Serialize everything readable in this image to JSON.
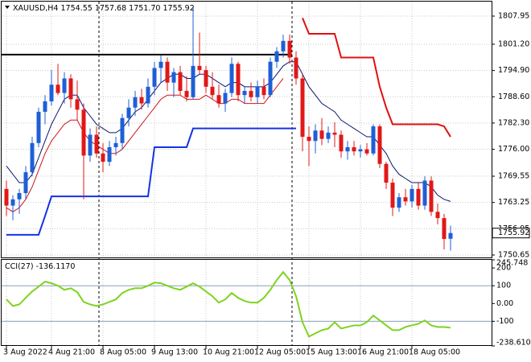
{
  "chart_data": [
    {
      "type": "candlestick",
      "symbol": "XAUUSD,H4",
      "header_values": [
        "1754.55",
        "1757.68",
        "1751.70",
        "1755.92"
      ],
      "categories": [
        "3 Aug 2022",
        null,
        null,
        null,
        null,
        null,
        null,
        "4 Aug 21:00",
        null,
        null,
        null,
        null,
        null,
        null,
        null,
        "8 Aug 05:00",
        null,
        null,
        null,
        null,
        null,
        null,
        null,
        "9 Aug 13:00",
        null,
        null,
        null,
        null,
        null,
        null,
        null,
        "10 Aug 21:00",
        null,
        null,
        null,
        null,
        null,
        null,
        null,
        "12 Aug 05:00",
        null,
        null,
        null,
        null,
        null,
        null,
        null,
        "15 Aug 13:00",
        null,
        null,
        null,
        null,
        null,
        null,
        null,
        "16 Aug 21:00",
        null,
        null,
        null,
        null,
        null,
        null,
        null,
        "18 Aug 05:00",
        null,
        null,
        null,
        null,
        null,
        null
      ],
      "open": [
        1766.5,
        1762.5,
        1764.0,
        1765.5,
        1770.5,
        1777.5,
        1785.0,
        1787.5,
        1791.5,
        1789.5,
        1793.0,
        1788.0,
        1785.5,
        1774.5,
        1779.5,
        1775.0,
        1773.0,
        1776.5,
        1777.5,
        1783.5,
        1786.0,
        1788.5,
        1787.0,
        1791.0,
        1795.5,
        1797.0,
        1792.0,
        1794.5,
        1790.0,
        1788.5,
        1796.0,
        1795.0,
        1791.0,
        1789.0,
        1787.0,
        1789.5,
        1796.5,
        1789.0,
        1790.0,
        1788.5,
        1791.0,
        1789.0,
        1797.0,
        1799.5,
        1802.0,
        1798.0,
        1793.0,
        1779.0,
        1778.0,
        1780.5,
        1778.5,
        1780.0,
        1779.5,
        1775.5,
        1776.5,
        1775.5,
        1776.0,
        1775.0,
        1781.5,
        1772.5,
        1768.0,
        1762.0,
        1764.5,
        1763.5,
        1766.5,
        1762.5,
        1768.5,
        1761.0,
        1759.5,
        1754.55
      ],
      "high": [
        1768.5,
        1765.0,
        1766.5,
        1772.0,
        1779.0,
        1786.0,
        1789.0,
        1795.0,
        1796.5,
        1794.5,
        1794.0,
        1792.5,
        1787.0,
        1781.0,
        1781.5,
        1777.5,
        1778.0,
        1779.0,
        1784.5,
        1788.0,
        1790.0,
        1790.5,
        1793.0,
        1797.0,
        1798.5,
        1798.0,
        1795.5,
        1796.0,
        1793.5,
        1810.0,
        1804.0,
        1796.0,
        1794.5,
        1791.5,
        1790.5,
        1798.0,
        1797.0,
        1791.0,
        1792.0,
        1792.5,
        1793.0,
        1798.0,
        1800.5,
        1803.5,
        1803.5,
        1799.5,
        1794.0,
        1781.5,
        1782.0,
        1783.5,
        1781.5,
        1782.5,
        1780.5,
        1778.0,
        1778.0,
        1777.0,
        1777.5,
        1782.0,
        1782.0,
        1773.0,
        1769.0,
        1765.5,
        1766.5,
        1767.5,
        1768.0,
        1769.5,
        1769.5,
        1763.0,
        1760.5,
        1757.68
      ],
      "low": [
        1760.0,
        1759.0,
        1760.5,
        1764.0,
        1769.5,
        1776.5,
        1782.0,
        1786.5,
        1789.0,
        1787.0,
        1786.0,
        1783.0,
        1764.0,
        1773.0,
        1774.0,
        1770.5,
        1772.0,
        1774.5,
        1776.0,
        1781.5,
        1784.0,
        1785.5,
        1786.0,
        1789.0,
        1792.0,
        1790.0,
        1788.5,
        1789.0,
        1787.5,
        1788.0,
        1794.0,
        1789.5,
        1788.0,
        1786.0,
        1785.0,
        1788.5,
        1787.5,
        1787.0,
        1787.5,
        1787.0,
        1788.0,
        1788.5,
        1795.5,
        1798.0,
        1796.5,
        1791.5,
        1775.5,
        1772.0,
        1775.0,
        1777.0,
        1777.5,
        1776.5,
        1774.0,
        1773.5,
        1774.5,
        1774.0,
        1774.5,
        1774.5,
        1771.5,
        1766.5,
        1760.0,
        1761.0,
        1762.5,
        1762.0,
        1761.5,
        1761.5,
        1760.0,
        1758.0,
        1752.0,
        1751.7
      ],
      "close": [
        1762.5,
        1764.0,
        1765.5,
        1770.5,
        1777.5,
        1785.0,
        1787.5,
        1791.5,
        1789.5,
        1793.0,
        1788.0,
        1785.5,
        1774.5,
        1779.5,
        1775.0,
        1773.0,
        1776.5,
        1777.5,
        1783.5,
        1786.0,
        1788.5,
        1787.0,
        1791.0,
        1795.5,
        1797.0,
        1792.0,
        1794.5,
        1790.0,
        1788.5,
        1796.0,
        1795.0,
        1791.0,
        1789.0,
        1787.0,
        1789.5,
        1796.5,
        1789.0,
        1790.0,
        1788.5,
        1791.0,
        1789.0,
        1797.0,
        1799.5,
        1802.0,
        1798.0,
        1793.0,
        1779.0,
        1778.0,
        1780.5,
        1778.5,
        1780.0,
        1779.5,
        1775.5,
        1776.5,
        1775.5,
        1776.0,
        1775.0,
        1781.5,
        1772.5,
        1768.0,
        1762.0,
        1764.5,
        1763.5,
        1766.5,
        1762.5,
        1768.5,
        1761.0,
        1759.5,
        1754.5,
        1755.92
      ],
      "up_color": "#1e5fd6",
      "down_color": "#e01818",
      "series": [
        {
          "color": "#0b1670",
          "width": 1,
          "values": [
            1772,
            1770,
            1768,
            1768,
            1770,
            1774,
            1778,
            1782,
            1785,
            1788,
            1789,
            1789,
            1786,
            1784,
            1782,
            1781,
            1780,
            1780,
            1781,
            1783,
            1785,
            1786,
            1788,
            1790,
            1792,
            1793,
            1794,
            1794,
            1793,
            1793,
            1794,
            1794,
            1793,
            1792,
            1791,
            1792,
            1792,
            1791,
            1791,
            1791,
            1791,
            1792,
            1794,
            1796,
            1797,
            1797,
            1794,
            1791,
            1789,
            1787,
            1786,
            1785,
            1783,
            1782,
            1781,
            1780,
            1779,
            1779,
            1777,
            1775,
            1772,
            1770,
            1769,
            1768,
            1768,
            1768,
            1767,
            1765,
            1764,
            1763.5
          ]
        },
        {
          "color": "#d01414",
          "width": 1,
          "values": [
            1762,
            1761,
            1762,
            1764,
            1767,
            1771,
            1775,
            1778,
            1780,
            1782,
            1783,
            1783,
            1780,
            1778,
            1777,
            1776,
            1775,
            1775,
            1776,
            1778,
            1780,
            1782,
            1784,
            1786,
            1788,
            1789,
            1789,
            1789,
            1788,
            1788,
            1788,
            1789,
            1788,
            1787,
            1787,
            1788,
            1788,
            1787,
            1787,
            1787,
            1787,
            1789,
            1791,
            1793,
            null,
            null,
            null,
            null,
            null,
            null,
            null,
            null,
            null,
            null,
            null,
            null,
            null,
            null,
            null,
            null,
            null,
            null,
            null,
            null,
            null,
            null,
            null,
            null,
            null,
            null
          ]
        },
        {
          "color": "#1432e6",
          "width": 2,
          "values": [
            1755.5,
            1755.5,
            1755.5,
            1755.5,
            1755.5,
            1755.5,
            1760,
            1764.7,
            1764.7,
            1764.7,
            1764.7,
            1764.7,
            1764.7,
            1764.7,
            1764.7,
            1764.7,
            1764.7,
            1764.7,
            1764.7,
            1764.7,
            1764.7,
            1764.7,
            1764.7,
            1776.5,
            1776.5,
            1776.5,
            1776.5,
            1776.5,
            1776.5,
            1781,
            1781,
            1781,
            1781,
            1781,
            1781,
            1781,
            1781,
            1781,
            1781,
            1781,
            1781,
            1781,
            1781,
            1781,
            1781,
            1781,
            null,
            null,
            null,
            null,
            null,
            null,
            null,
            null,
            null,
            null,
            null,
            null,
            null,
            null,
            null,
            null,
            null,
            null,
            null,
            null,
            null,
            null,
            null,
            null
          ]
        },
        {
          "color": "#e01010",
          "width": 2,
          "values": [
            null,
            null,
            null,
            null,
            null,
            null,
            null,
            null,
            null,
            null,
            null,
            null,
            null,
            null,
            null,
            null,
            null,
            null,
            null,
            null,
            null,
            null,
            null,
            null,
            null,
            null,
            null,
            null,
            null,
            null,
            null,
            null,
            null,
            null,
            null,
            null,
            null,
            null,
            null,
            null,
            null,
            null,
            null,
            null,
            null,
            null,
            1807.5,
            1803.7,
            1803.7,
            1803.7,
            1803.7,
            1803.7,
            1798,
            1798,
            1798,
            1798,
            1798,
            1798,
            1791,
            1786,
            1782,
            1782,
            1782,
            1782,
            1782,
            1782,
            1782,
            1782,
            1781.5,
            1779
          ]
        }
      ],
      "hline": 1798.7,
      "ylim": [
        1750.07,
        1811.42
      ],
      "yticks": [
        1807.95,
        {
          "value": 1801.2,
          "label": "1801.20"
        },
        {
          "value": 1794.9,
          "label": "1794.90"
        },
        {
          "value": 1788.6,
          "label": "1788.60"
        },
        {
          "value": 1782.3,
          "label": "1782.30"
        },
        {
          "value": 1776,
          "label": "1776.00"
        },
        1769.55,
        1763.25,
        1756.95,
        1750.65
      ],
      "grid": true
    },
    {
      "type": "line",
      "title": "CCI(27)",
      "value_label": "-136.1170",
      "color": "#7ed321",
      "values": [
        23,
        -14,
        -5,
        32,
        68,
        95,
        123,
        114,
        100,
        77,
        86,
        64,
        9,
        -5,
        -14,
        -5,
        9,
        23,
        59,
        77,
        86,
        86,
        100,
        118,
        114,
        100,
        86,
        77,
        95,
        114,
        95,
        68,
        41,
        5,
        23,
        59,
        32,
        14,
        5,
        5,
        32,
        77,
        132,
        177,
        132,
        41,
        -105,
        -186,
        -168,
        -150,
        -141,
        -105,
        -141,
        -132,
        -123,
        -123,
        -105,
        -68,
        -95,
        -123,
        -150,
        -150,
        -132,
        -123,
        -114,
        -95,
        -123,
        -132,
        -132,
        -136.117
      ],
      "ylim": [
        -238.6107,
        245.748
      ],
      "yticks": [
        245.748,
        200,
        100,
        {
          "value": 0,
          "label": "0.00"
        },
        -100,
        -238.6107
      ],
      "levels": [
        100,
        -100
      ]
    }
  ]
}
